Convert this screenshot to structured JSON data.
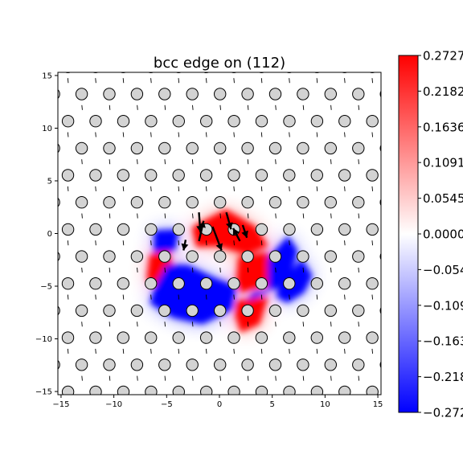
{
  "chart_data": {
    "type": "heatmap",
    "title": "bcc edge on (112)",
    "xlim": [
      -15.3,
      15.3
    ],
    "ylim": [
      -15.3,
      15.3
    ],
    "x_ticks": [
      -15,
      -10,
      -5,
      0,
      5,
      10,
      15
    ],
    "y_ticks": [
      -15,
      -10,
      -5,
      0,
      5,
      10,
      15
    ],
    "x_tick_labels": [
      "−15",
      "−10",
      "−5",
      "0",
      "5",
      "10",
      "15"
    ],
    "y_tick_labels": [
      "−15",
      "−10",
      "−5",
      "0",
      "5",
      "10",
      "15"
    ],
    "xlabel": "",
    "ylabel": "",
    "grid": false,
    "colorbar": {
      "colormap": "bwr",
      "min": -0.2727,
      "max": 0.2727,
      "ticks": [
        0.2727,
        0.2182,
        0.1636,
        0.1091,
        0.0545,
        0.0,
        -0.0545,
        -0.1091,
        -0.1636,
        -0.2182,
        -0.2727
      ],
      "tick_labels": [
        "0.2727",
        "0.2182",
        "0.1636",
        "0.1091",
        "0.0545",
        "0.0000",
        "−0.0545",
        "−0.1091",
        "−0.1636",
        "−0.2182",
        "−0.2727"
      ]
    },
    "colors": {
      "positive": "#ff0000",
      "zero": "#ffffff",
      "negative": "#0000ff",
      "atom_fill": "#d3d3d3",
      "atom_edge": "#000000"
    },
    "lattice": {
      "row_spacing": 2.57,
      "col_spacing": 2.62,
      "row_y_start": -15.03,
      "row_count": 13,
      "row_x_offsets": [
        -11.72,
        -13.05,
        -14.35,
        -13.05,
        -14.35,
        -13.05,
        -11.72,
        -13.05,
        -14.35,
        -13.05,
        -11.72,
        -13.05,
        -14.35
      ],
      "atom_radius": 0.5
    },
    "field_regions": [
      {
        "sign": "positive",
        "level": 1.0,
        "polygon": [
          [
            -2.6,
            0.6
          ],
          [
            0.6,
            2.3
          ],
          [
            3.5,
            0.6
          ],
          [
            4.6,
            -1.2
          ],
          [
            2.6,
            -2.0
          ],
          [
            -0.2,
            -1.2
          ],
          [
            -2.2,
            -1.3
          ]
        ]
      },
      {
        "sign": "positive",
        "level": 1.0,
        "polygon": [
          [
            -6.6,
            -2.0
          ],
          [
            -4.8,
            -1.6
          ],
          [
            -4.2,
            -4.4
          ],
          [
            -5.8,
            -5.2
          ],
          [
            -6.9,
            -4.4
          ]
        ]
      },
      {
        "sign": "positive",
        "level": 1.0,
        "polygon": [
          [
            1.8,
            -2.2
          ],
          [
            4.6,
            -1.8
          ],
          [
            5.2,
            -4.8
          ],
          [
            2.0,
            -5.6
          ],
          [
            1.6,
            -4.6
          ]
        ]
      },
      {
        "sign": "positive",
        "level": 1.0,
        "polygon": [
          [
            1.6,
            -6.4
          ],
          [
            4.6,
            -6.0
          ],
          [
            3.8,
            -8.6
          ],
          [
            2.0,
            -9.4
          ],
          [
            1.5,
            -7.8
          ]
        ]
      },
      {
        "sign": "negative",
        "level": 1.0,
        "polygon": [
          [
            -6.2,
            0.3
          ],
          [
            -3.8,
            0.4
          ],
          [
            -4.2,
            -1.6
          ],
          [
            -6.2,
            -1.8
          ]
        ]
      },
      {
        "sign": "negative",
        "level": 1.0,
        "polygon": [
          [
            -5.0,
            -3.0
          ],
          [
            -3.0,
            -3.0
          ],
          [
            -0.5,
            -4.2
          ],
          [
            1.6,
            -5.0
          ],
          [
            1.2,
            -7.2
          ],
          [
            -1.6,
            -8.6
          ],
          [
            -4.4,
            -8.0
          ],
          [
            -6.6,
            -6.6
          ],
          [
            -6.0,
            -4.8
          ]
        ]
      },
      {
        "sign": "negative",
        "level": 1.0,
        "polygon": [
          [
            4.6,
            -2.4
          ],
          [
            6.5,
            -0.2
          ],
          [
            7.4,
            -1.6
          ],
          [
            6.8,
            -3.8
          ],
          [
            5.4,
            -5.2
          ],
          [
            3.2,
            -5.6
          ],
          [
            2.6,
            -6.4
          ],
          [
            4.6,
            -5.6
          ]
        ]
      },
      {
        "sign": "negative",
        "level": 1.0,
        "polygon": [
          [
            5.6,
            -5.0
          ],
          [
            7.8,
            -2.4
          ],
          [
            8.8,
            -4.0
          ],
          [
            8.0,
            -5.6
          ],
          [
            6.4,
            -6.6
          ],
          [
            5.4,
            -6.0
          ]
        ]
      }
    ],
    "arrows": [
      {
        "from": [
          -1.94,
          2.01
        ],
        "to": [
          -1.8,
          0.1
        ]
      },
      {
        "from": [
          -0.65,
          0.64
        ],
        "to": [
          0.2,
          -1.6
        ]
      },
      {
        "from": [
          0.65,
          2.01
        ],
        "to": [
          1.1,
          0.4
        ]
      },
      {
        "from": [
          1.94,
          -0.72
        ],
        "to": [
          1.3,
          0.5
        ]
      },
      {
        "from": [
          -1.94,
          -0.72
        ],
        "to": [
          -1.5,
          1.2
        ]
      },
      {
        "from": [
          -3.2,
          -0.6
        ],
        "to": [
          -3.4,
          -1.6
        ]
      },
      {
        "from": [
          2.2,
          0.8
        ],
        "to": [
          2.6,
          -0.4
        ]
      }
    ]
  }
}
